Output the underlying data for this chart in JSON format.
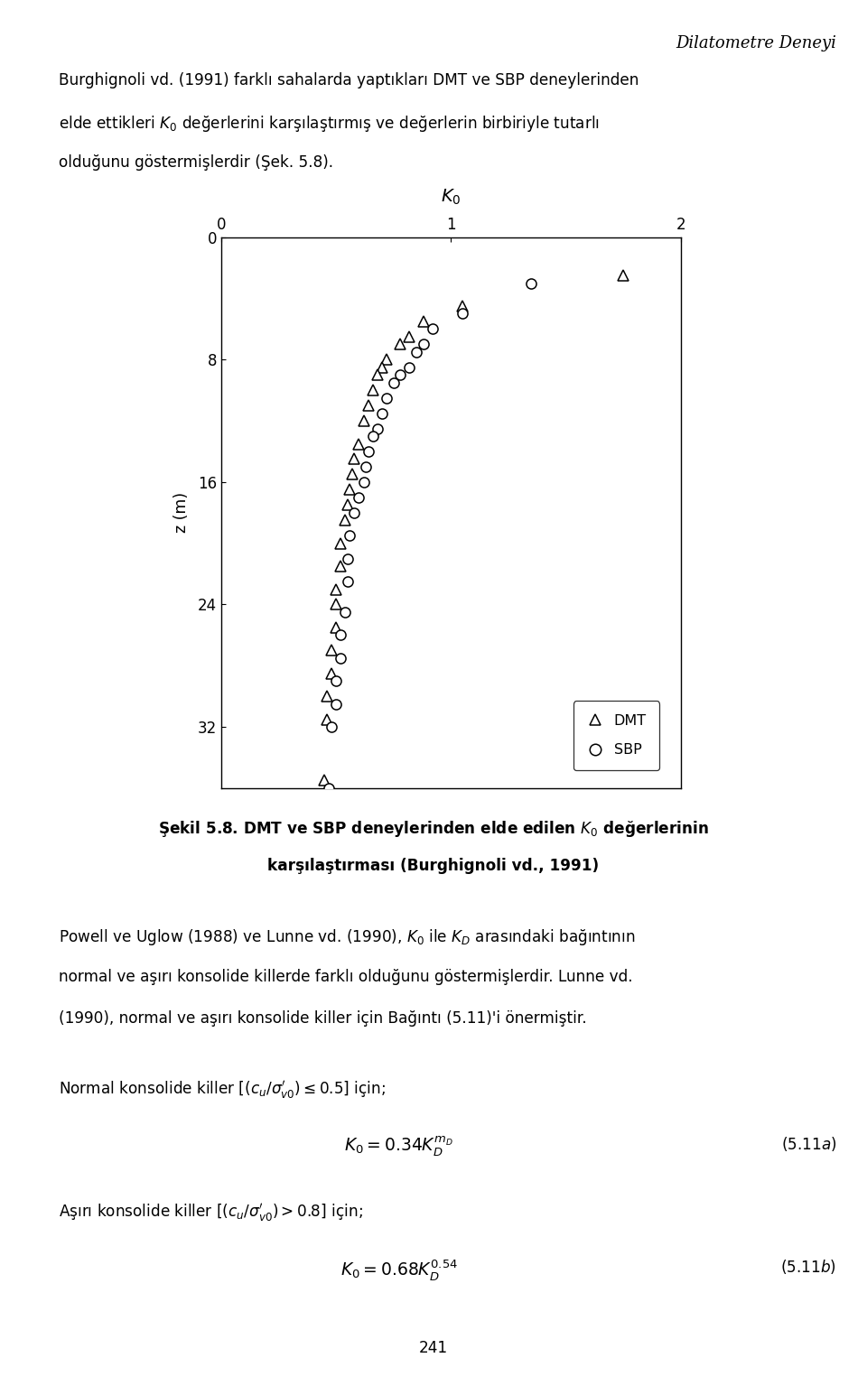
{
  "page_title": "Dilatometre Deneyi",
  "xlim": [
    0,
    2
  ],
  "ylim": [
    0,
    36
  ],
  "xticks": [
    0,
    1,
    2
  ],
  "yticks": [
    0,
    8,
    16,
    24,
    32
  ],
  "dmt_data": {
    "K0": [
      1.75,
      1.05,
      0.88,
      0.82,
      0.78,
      0.72,
      0.7,
      0.68,
      0.66,
      0.64,
      0.62,
      0.6,
      0.58,
      0.57,
      0.56,
      0.55,
      0.54,
      0.52,
      0.52,
      0.5,
      0.5,
      0.5,
      0.48,
      0.48,
      0.46,
      0.46,
      0.45
    ],
    "z": [
      2.5,
      4.5,
      5.5,
      6.5,
      7.0,
      8.0,
      8.5,
      9.0,
      10.0,
      11.0,
      12.0,
      13.5,
      14.5,
      15.5,
      16.5,
      17.5,
      18.5,
      20.0,
      21.5,
      23.0,
      24.0,
      25.5,
      27.0,
      28.5,
      30.0,
      31.5,
      35.5
    ]
  },
  "sbp_data": {
    "K0": [
      1.35,
      1.05,
      0.92,
      0.88,
      0.85,
      0.82,
      0.78,
      0.75,
      0.72,
      0.7,
      0.68,
      0.66,
      0.64,
      0.63,
      0.62,
      0.6,
      0.58,
      0.56,
      0.55,
      0.55,
      0.54,
      0.52,
      0.52,
      0.5,
      0.5,
      0.48,
      0.47
    ],
    "z": [
      3.0,
      5.0,
      6.0,
      7.0,
      7.5,
      8.5,
      9.0,
      9.5,
      10.5,
      11.5,
      12.5,
      13.0,
      14.0,
      15.0,
      16.0,
      17.0,
      18.0,
      19.5,
      21.0,
      22.5,
      24.5,
      26.0,
      27.5,
      29.0,
      30.5,
      32.0,
      36.0
    ]
  },
  "background_color": "#ffffff",
  "text_color": "#000000"
}
